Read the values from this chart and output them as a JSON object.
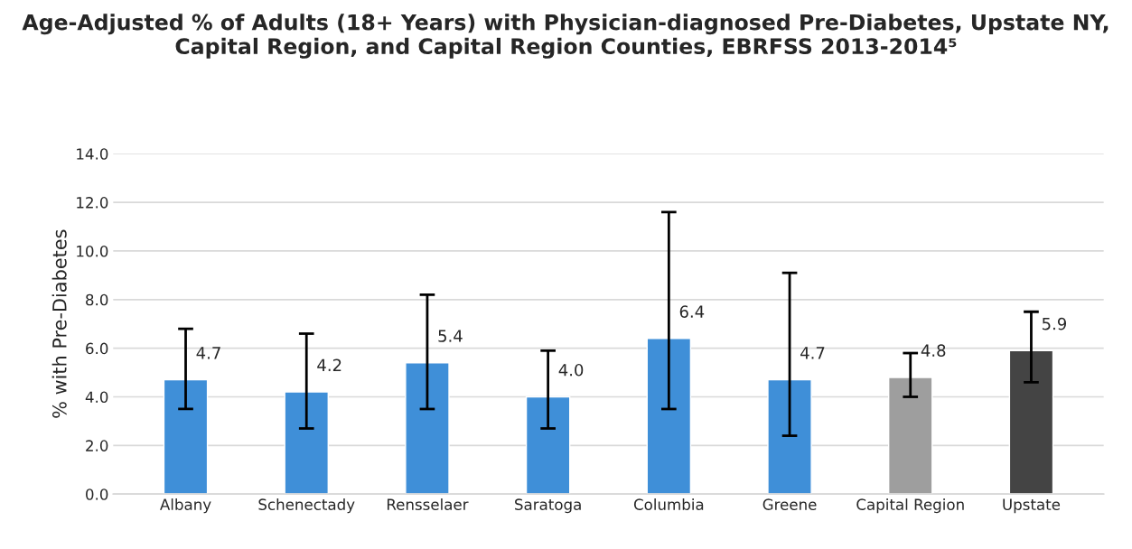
{
  "chart_data": {
    "type": "bar",
    "title": "Age-Adjusted % of Adults (18+ Years) with Physician-diagnosed Pre-Diabetes, Upstate NY, Capital Region, and Capital Region Counties, EBRFSS 2013-2014⁵",
    "ylabel": "% with Pre-Diabetes",
    "categories": [
      "Albany",
      "Schenectady",
      "Rensselaer",
      "Saratoga",
      "Columbia",
      "Greene",
      "Capital Region",
      "Upstate"
    ],
    "values": [
      4.7,
      4.2,
      5.4,
      4.0,
      6.4,
      4.7,
      4.8,
      5.9
    ],
    "colors": [
      "#3f8fd8",
      "#3f8fd8",
      "#3f8fd8",
      "#3f8fd8",
      "#3f8fd8",
      "#3f8fd8",
      "#9e9e9e",
      "#444444"
    ],
    "errors": [
      [
        3.5,
        6.8
      ],
      [
        2.7,
        6.6
      ],
      [
        3.5,
        8.2
      ],
      [
        2.7,
        5.9
      ],
      [
        3.5,
        11.6
      ],
      [
        2.4,
        9.1
      ],
      [
        4.0,
        5.8
      ],
      [
        4.6,
        7.5
      ]
    ],
    "value_labels": [
      "4.7",
      "4.2",
      "5.4",
      "4.0",
      "6.4",
      "4.7",
      "4.8",
      "5.9"
    ],
    "ylim": [
      0,
      14
    ],
    "yticks": [
      {
        "value": 0,
        "label": "0.0"
      },
      {
        "value": 2,
        "label": "2.0"
      },
      {
        "value": 4,
        "label": "4.0"
      },
      {
        "value": 6,
        "label": "6.0"
      },
      {
        "value": 8,
        "label": "8.0"
      },
      {
        "value": 10,
        "label": "10.0"
      },
      {
        "value": 12,
        "label": "12.0"
      },
      {
        "value": 14,
        "label": "14.0"
      }
    ],
    "grid": "y"
  }
}
